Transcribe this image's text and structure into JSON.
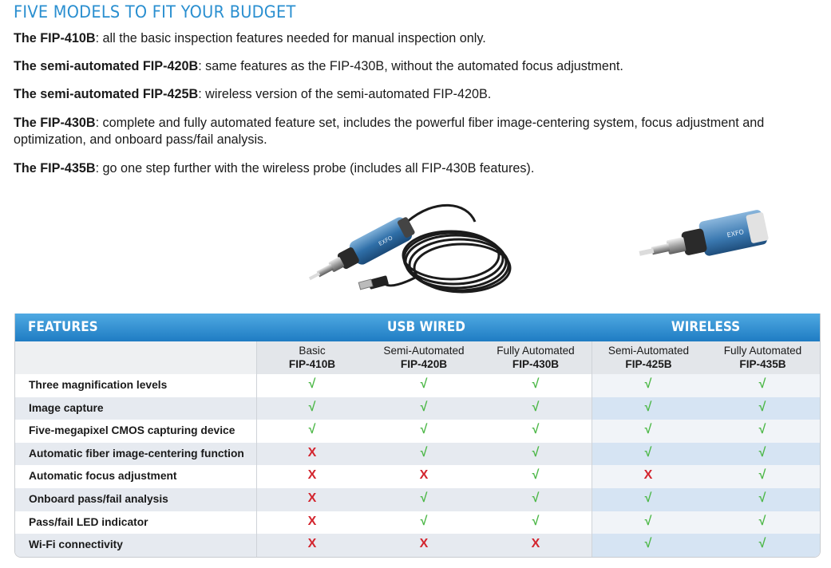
{
  "heading": "FIVE MODELS TO FIT YOUR BUDGET",
  "models": [
    {
      "name": "The FIP-410B",
      "desc": ": all the basic inspection features needed for manual inspection only."
    },
    {
      "name": "The semi-automated FIP-420B",
      "desc": ": same features as the FIP-430B, without the automated focus adjustment."
    },
    {
      "name": "The semi-automated FIP-425B",
      "desc": ": wireless version of the semi-automated FIP-420B."
    },
    {
      "name": "The FIP-430B",
      "desc": ": complete and fully automated feature set, includes the powerful fiber image-centering system, focus adjustment and optimization, and onboard pass/fail analysis."
    },
    {
      "name": "The FIP-435B",
      "desc": ": go one step further with the wireless probe (includes all FIP-430B features)."
    }
  ],
  "photos": {
    "wired_probe_label": "EXFO",
    "wireless_probe_label": "EXFO"
  },
  "table": {
    "header_features": "FEATURES",
    "header_usb": "USB WIRED",
    "header_wireless": "WIRELESS",
    "columns": [
      {
        "tier": "Basic",
        "model": "FIP-410B"
      },
      {
        "tier": "Semi-Automated",
        "model": "FIP-420B"
      },
      {
        "tier": "Fully Automated",
        "model": "FIP-430B"
      },
      {
        "tier": "Semi-Automated",
        "model": "FIP-425B"
      },
      {
        "tier": "Fully Automated",
        "model": "FIP-435B"
      }
    ],
    "yes_symbol": "√",
    "no_symbol": "X",
    "rows": [
      {
        "feature": "Three magnification levels",
        "values": [
          true,
          true,
          true,
          true,
          true
        ]
      },
      {
        "feature": "Image capture",
        "values": [
          true,
          true,
          true,
          true,
          true
        ]
      },
      {
        "feature": "Five-megapixel CMOS capturing device",
        "values": [
          true,
          true,
          true,
          true,
          true
        ]
      },
      {
        "feature": "Automatic fiber image-centering function",
        "values": [
          false,
          true,
          true,
          true,
          true
        ]
      },
      {
        "feature": "Automatic focus adjustment",
        "values": [
          false,
          false,
          true,
          false,
          true
        ]
      },
      {
        "feature": "Onboard pass/fail analysis",
        "values": [
          false,
          true,
          true,
          true,
          true
        ]
      },
      {
        "feature": "Pass/fail LED indicator",
        "values": [
          false,
          true,
          true,
          true,
          true
        ]
      },
      {
        "feature": "Wi-Fi connectivity",
        "values": [
          false,
          false,
          false,
          true,
          true
        ]
      }
    ]
  },
  "colors": {
    "heading": "#2a8fd0",
    "header_bar": "#1f7cc3",
    "check": "#4db848",
    "cross": "#d3252e"
  }
}
